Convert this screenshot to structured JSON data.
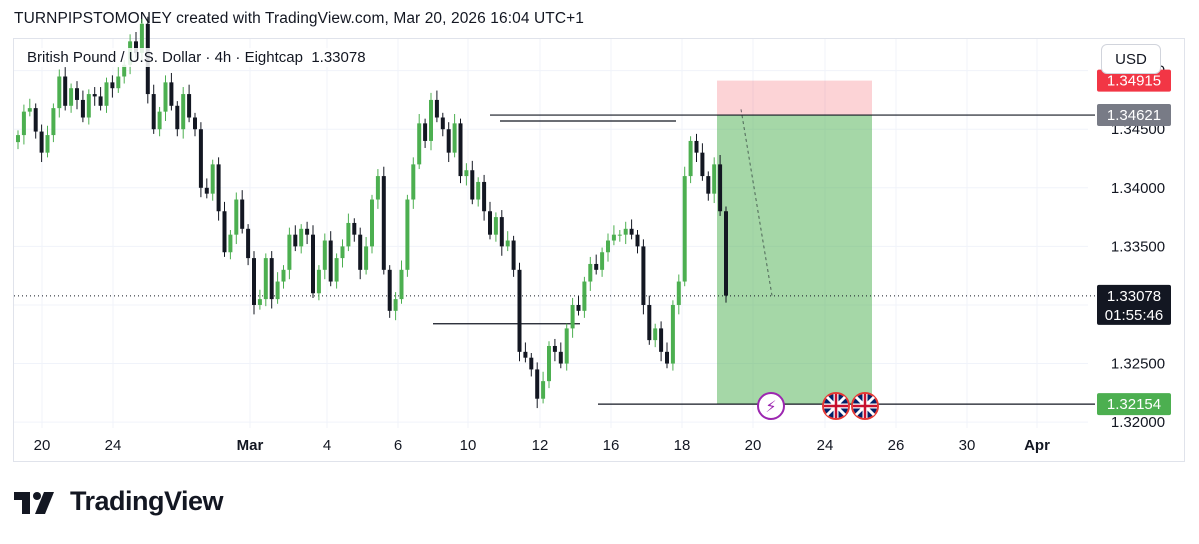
{
  "credit": "TURNPIPSTOMONEY created with TradingView.com, Mar 20, 2026 16:04 UTC+1",
  "symbol_line": "British Pound / U.S. Dollar · 4h · Eightcap",
  "last_price": "1.33078",
  "currency_button": "USD",
  "countdown": "01:55:46",
  "logo_text": "TradingView",
  "colors": {
    "up": "#4caf50",
    "down": "#131722",
    "stop": "#f23645",
    "target": "#4caf50",
    "entry": "#787b86"
  },
  "icons": [
    "lightning-event-icon",
    "uk-flag-icon",
    "uk-flag-icon"
  ],
  "chart_data": {
    "type": "candlestick",
    "ylim": [
      1.3195,
      1.3527
    ],
    "yticks": [
      "1.32000",
      "1.32500",
      "1.33000",
      "1.33500",
      "1.34000",
      "1.34500",
      "1.35000"
    ],
    "xticks": [
      "20",
      "24",
      "Mar",
      "4",
      "6",
      "10",
      "12",
      "16",
      "18",
      "20",
      "24",
      "26",
      "30",
      "Apr"
    ],
    "price_labels": {
      "stop": "1.34915",
      "entry": "1.34621",
      "current": "1.33078",
      "target": "1.32154"
    },
    "position": {
      "entry": 1.34621,
      "stop": 1.34915,
      "target": 1.32154,
      "start_date": "Mar 19",
      "end_date": "Mar 25"
    },
    "horizontal_lines": [
      {
        "price": 1.3462,
        "from": "Mar 10",
        "to": "Mar 18"
      },
      {
        "price": 1.3284,
        "from": "Mar 6",
        "to": "Mar 15"
      },
      {
        "price": 1.3217,
        "from": "Mar 15",
        "to": "Mar 25"
      }
    ],
    "closes": [
      1.3445,
      1.3465,
      1.3468,
      1.3448,
      1.343,
      1.3445,
      1.3468,
      1.3495,
      1.347,
      1.3485,
      1.3475,
      1.346,
      1.348,
      1.3478,
      1.347,
      1.349,
      1.3485,
      1.3495,
      1.3505,
      1.3525,
      1.3515,
      1.354,
      1.348,
      1.345,
      1.3465,
      1.349,
      1.347,
      1.345,
      1.348,
      1.346,
      1.345,
      1.34,
      1.3395,
      1.342,
      1.338,
      1.3345,
      1.336,
      1.339,
      1.3365,
      1.334,
      1.33,
      1.3305,
      1.334,
      1.3305,
      1.332,
      1.333,
      1.336,
      1.335,
      1.3365,
      1.336,
      1.331,
      1.333,
      1.3355,
      1.332,
      1.334,
      1.335,
      1.337,
      1.336,
      1.333,
      1.335,
      1.339,
      1.341,
      1.333,
      1.3295,
      1.3305,
      1.333,
      1.339,
      1.342,
      1.3455,
      1.344,
      1.3475,
      1.346,
      1.345,
      1.343,
      1.3455,
      1.341,
      1.3415,
      1.339,
      1.3405,
      1.338,
      1.336,
      1.3375,
      1.335,
      1.3355,
      1.333,
      1.326,
      1.3255,
      1.3245,
      1.322,
      1.3235,
      1.3265,
      1.326,
      1.325,
      1.328,
      1.33,
      1.3295,
      1.332,
      1.3335,
      1.333,
      1.3345,
      1.3355,
      1.336,
      1.336,
      1.3365,
      1.336,
      1.335,
      1.33,
      1.327,
      1.328,
      1.326,
      1.325,
      1.33,
      1.332,
      1.341,
      1.344,
      1.343,
      1.341,
      1.3395,
      1.342,
      1.338,
      1.3308
    ]
  }
}
